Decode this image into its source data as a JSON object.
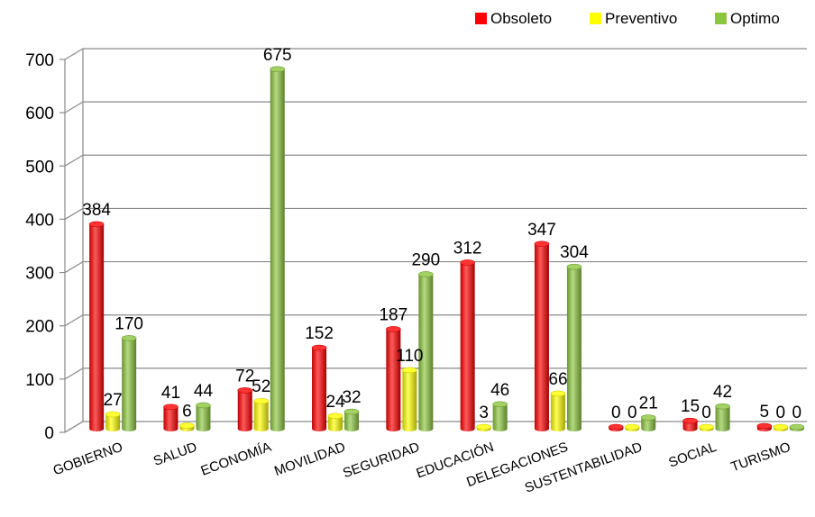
{
  "chart_data": {
    "type": "bar",
    "categories": [
      "GOBIERNO",
      "SALUD",
      "ECONOMÍA",
      "MOVILIDAD",
      "SEGURIDAD",
      "EDUCACIÓN",
      "DELEGACIONES",
      "SUSTENTABILIDAD",
      "SOCIAL",
      "TURISMO"
    ],
    "series": [
      {
        "name": "Obsoleto",
        "color": "#ff0000",
        "values": [
          384,
          41,
          72,
          152,
          187,
          312,
          347,
          0,
          15,
          5
        ]
      },
      {
        "name": "Preventivo",
        "color": "#ffff00",
        "values": [
          27,
          6,
          52,
          24,
          110,
          3,
          66,
          0,
          0,
          0
        ]
      },
      {
        "name": "Optimo",
        "color": "#8cc63f",
        "values": [
          170,
          44,
          675,
          32,
          290,
          46,
          304,
          21,
          42,
          0
        ]
      }
    ],
    "yticks": [
      "0",
      "100",
      "200",
      "300",
      "400",
      "500",
      "600",
      "700"
    ],
    "ylim": [
      0,
      700
    ],
    "grid": true,
    "legend_position": "top-right",
    "style": "3d-cylinder"
  }
}
